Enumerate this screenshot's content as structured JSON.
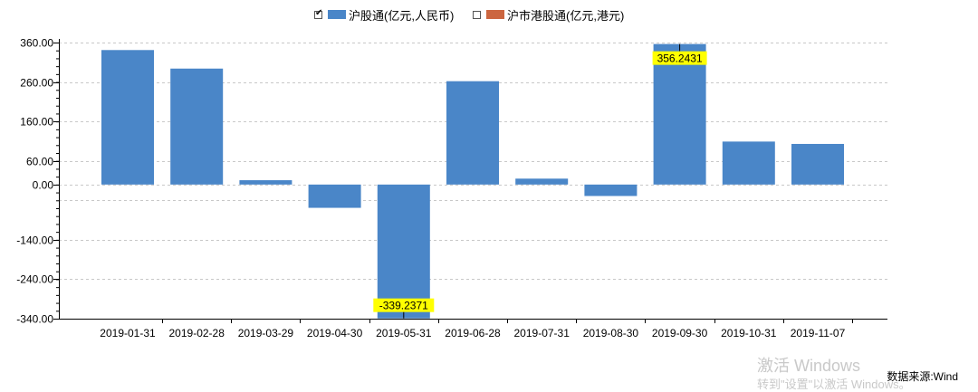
{
  "legend": [
    {
      "label": "沪股通(亿元,人民币)",
      "color": "#4a86c8",
      "checked": true
    },
    {
      "label": "沪市港股通(亿元,港元)",
      "color": "#cc6640",
      "checked": false
    }
  ],
  "chart_data": {
    "type": "bar",
    "categories": [
      "2019-01-31",
      "2019-02-28",
      "2019-03-29",
      "2019-04-30",
      "2019-05-31",
      "2019-06-28",
      "2019-07-31",
      "2019-08-30",
      "2019-09-30",
      "2019-10-31",
      "2019-11-07"
    ],
    "series": [
      {
        "name": "沪股通(亿元,人民币)",
        "color": "#4a86c8",
        "values": [
          341,
          294,
          11,
          -59,
          -339.2371,
          262,
          15,
          -29,
          356.2431,
          109,
          103
        ]
      }
    ],
    "y_ticks": [
      "360.00",
      "260.00",
      "160.00",
      "60.00",
      "0.00",
      "-140.00",
      "-240.00",
      "-340.00"
    ],
    "y_tick_values": [
      360,
      260,
      160,
      60,
      0,
      -140,
      -240,
      -340
    ],
    "ylim": [
      -340,
      360
    ],
    "data_labels": [
      {
        "category": "2019-05-31",
        "text": "-339.2371",
        "position": "bottom"
      },
      {
        "category": "2019-09-30",
        "text": "356.2431",
        "position": "top"
      }
    ],
    "grid": true,
    "legend_position": "top"
  },
  "source": "数据来源:Wind",
  "watermark": {
    "line1": "激活 Windows",
    "line2": "转到\"设置\"以激活 Windows。"
  }
}
